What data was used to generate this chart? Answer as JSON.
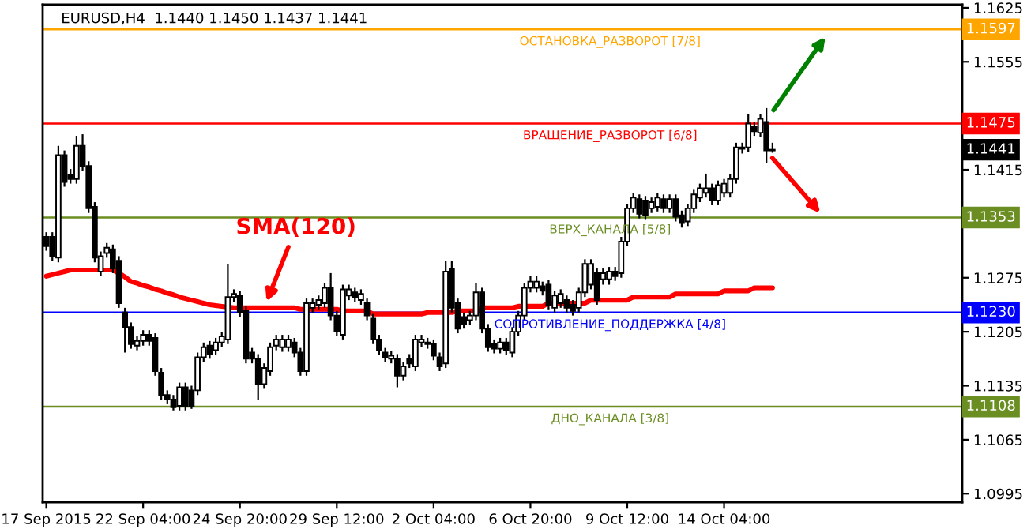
{
  "chart_data": {
    "type": "candlestick",
    "title": "EURUSD,H4  1.1440 1.1450 1.1437 1.1441",
    "categories": [
      "17 Sep 2015",
      null,
      null,
      null,
      null,
      null,
      null,
      null,
      null,
      null,
      null,
      null,
      null,
      null,
      null,
      null,
      "22 Sep 04:00",
      null,
      null,
      null,
      null,
      null,
      null,
      null,
      null,
      null,
      null,
      null,
      null,
      null,
      null,
      null,
      "24 Sep 20:00",
      null,
      null,
      null,
      null,
      null,
      null,
      null,
      null,
      null,
      null,
      null,
      null,
      null,
      null,
      null,
      "29 Sep 12:00",
      null,
      null,
      null,
      null,
      null,
      null,
      null,
      null,
      null,
      null,
      null,
      null,
      null,
      null,
      null,
      "2 Oct 04:00",
      null,
      null,
      null,
      null,
      null,
      null,
      null,
      null,
      null,
      null,
      null,
      null,
      null,
      null,
      null,
      "6 Oct 20:00",
      null,
      null,
      null,
      null,
      null,
      null,
      null,
      null,
      null,
      null,
      null,
      null,
      null,
      null,
      null,
      "9 Oct 12:00",
      null,
      null,
      null,
      null,
      null,
      null,
      null,
      null,
      null,
      null,
      null,
      null,
      null,
      null,
      null,
      "14 Oct 04:00",
      null,
      null,
      null,
      null,
      null,
      null,
      null,
      null
    ],
    "ohlc": [
      [
        1.1328,
        1.1334,
        1.131,
        1.1316
      ],
      [
        1.1328,
        1.1334,
        1.1297,
        1.1303
      ],
      [
        1.1301,
        1.1446,
        1.1295,
        1.1434
      ],
      [
        1.1434,
        1.144,
        1.1393,
        1.1399
      ],
      [
        1.1408,
        1.1416,
        1.1397,
        1.1403
      ],
      [
        1.1403,
        1.1459,
        1.1397,
        1.1446
      ],
      [
        1.1446,
        1.1461,
        1.1414,
        1.142
      ],
      [
        1.142,
        1.1426,
        1.1359,
        1.1365
      ],
      [
        1.1367,
        1.1373,
        1.1295,
        1.1301
      ],
      [
        1.1283,
        1.1309,
        1.1277,
        1.1303
      ],
      [
        1.1307,
        1.132,
        1.1301,
        1.1314
      ],
      [
        1.1312,
        1.1318,
        1.1281,
        1.1287
      ],
      [
        1.1297,
        1.1303,
        1.1236,
        1.1242
      ],
      [
        1.123,
        1.1236,
        1.1178,
        1.1211
      ],
      [
        1.1211,
        1.1217,
        1.1183,
        1.1189
      ],
      [
        1.1187,
        1.1199,
        1.1181,
        1.1193
      ],
      [
        1.1193,
        1.1207,
        1.1187,
        1.1201
      ],
      [
        1.1201,
        1.1207,
        1.1187,
        1.1193
      ],
      [
        1.1197,
        1.1203,
        1.1148,
        1.1154
      ],
      [
        1.1152,
        1.1158,
        1.1117,
        1.1123
      ],
      [
        1.1123,
        1.1129,
        1.1111,
        1.1117
      ],
      [
        1.1117,
        1.1123,
        1.1103,
        1.1107
      ],
      [
        1.1109,
        1.1139,
        1.1103,
        1.1133
      ],
      [
        1.1133,
        1.1139,
        1.1103,
        1.1109
      ],
      [
        1.1129,
        1.1135,
        1.1105,
        1.1109
      ],
      [
        1.1129,
        1.1178,
        1.1123,
        1.1172
      ],
      [
        1.1172,
        1.1191,
        1.1166,
        1.1185
      ],
      [
        1.1187,
        1.1193,
        1.117,
        1.1176
      ],
      [
        1.1181,
        1.1197,
        1.1175,
        1.1191
      ],
      [
        1.1191,
        1.1205,
        1.1185,
        1.1199
      ],
      [
        1.1195,
        1.1293,
        1.1189,
        1.125
      ],
      [
        1.125,
        1.126,
        1.1244,
        1.1254
      ],
      [
        1.1252,
        1.1258,
        1.1224,
        1.123
      ],
      [
        1.1232,
        1.1238,
        1.1164,
        1.117
      ],
      [
        1.1178,
        1.1184,
        1.1164,
        1.117
      ],
      [
        1.117,
        1.1176,
        1.1117,
        1.1137
      ],
      [
        1.1137,
        1.1164,
        1.1131,
        1.1158
      ],
      [
        1.1154,
        1.1191,
        1.1148,
        1.1185
      ],
      [
        1.1187,
        1.1201,
        1.1181,
        1.1195
      ],
      [
        1.1185,
        1.1201,
        1.1179,
        1.1195
      ],
      [
        1.1185,
        1.1201,
        1.1179,
        1.1195
      ],
      [
        1.1191,
        1.1197,
        1.1172,
        1.1178
      ],
      [
        1.1178,
        1.1184,
        1.1148,
        1.1154
      ],
      [
        1.1154,
        1.1248,
        1.1148,
        1.1242
      ],
      [
        1.1236,
        1.1248,
        1.123,
        1.1242
      ],
      [
        1.124,
        1.1252,
        1.1234,
        1.1246
      ],
      [
        1.1242,
        1.1268,
        1.1236,
        1.1262
      ],
      [
        1.1262,
        1.1281,
        1.122,
        1.1226
      ],
      [
        1.1226,
        1.1232,
        1.1199,
        1.1205
      ],
      [
        1.1201,
        1.1266,
        1.1195,
        1.126
      ],
      [
        1.1252,
        1.1266,
        1.1246,
        1.126
      ],
      [
        1.1256,
        1.1262,
        1.1244,
        1.125
      ],
      [
        1.1246,
        1.126,
        1.124,
        1.1254
      ],
      [
        1.1242,
        1.1248,
        1.122,
        1.1226
      ],
      [
        1.1222,
        1.1228,
        1.1189,
        1.1195
      ],
      [
        1.1195,
        1.1201,
        1.1175,
        1.1181
      ],
      [
        1.1178,
        1.1184,
        1.1166,
        1.1172
      ],
      [
        1.117,
        1.118,
        1.1164,
        1.1174
      ],
      [
        1.117,
        1.1176,
        1.1133,
        1.1148
      ],
      [
        1.1148,
        1.1166,
        1.1142,
        1.116
      ],
      [
        1.117,
        1.1176,
        1.1158,
        1.1164
      ],
      [
        1.116,
        1.1201,
        1.1154,
        1.1195
      ],
      [
        1.1191,
        1.1201,
        1.1185,
        1.1195
      ],
      [
        1.1191,
        1.1197,
        1.1183,
        1.1189
      ],
      [
        1.1189,
        1.1195,
        1.1168,
        1.1174
      ],
      [
        1.1172,
        1.1178,
        1.1154,
        1.116
      ],
      [
        1.1164,
        1.1297,
        1.1158,
        1.1283
      ],
      [
        1.1287,
        1.1297,
        1.123,
        1.1236
      ],
      [
        1.1242,
        1.1248,
        1.1203,
        1.1209
      ],
      [
        1.1224,
        1.123,
        1.1209,
        1.1215
      ],
      [
        1.122,
        1.1232,
        1.1214,
        1.1226
      ],
      [
        1.1226,
        1.1268,
        1.122,
        1.1256
      ],
      [
        1.1256,
        1.1262,
        1.1203,
        1.1209
      ],
      [
        1.1209,
        1.1215,
        1.1179,
        1.1185
      ],
      [
        1.1189,
        1.1195,
        1.1177,
        1.1183
      ],
      [
        1.1183,
        1.1197,
        1.1177,
        1.1191
      ],
      [
        1.1191,
        1.1197,
        1.1175,
        1.1181
      ],
      [
        1.1178,
        1.1211,
        1.1172,
        1.1205
      ],
      [
        1.1205,
        1.1232,
        1.1199,
        1.1226
      ],
      [
        1.1226,
        1.1268,
        1.122,
        1.1262
      ],
      [
        1.1262,
        1.1277,
        1.1256,
        1.127
      ],
      [
        1.1262,
        1.1277,
        1.1256,
        1.127
      ],
      [
        1.1264,
        1.127,
        1.1252,
        1.1258
      ],
      [
        1.1266,
        1.1272,
        1.1234,
        1.124
      ],
      [
        1.1236,
        1.1258,
        1.123,
        1.1252
      ],
      [
        1.1242,
        1.126,
        1.1236,
        1.1254
      ],
      [
        1.1246,
        1.1252,
        1.123,
        1.1236
      ],
      [
        1.124,
        1.1246,
        1.1226,
        1.1232
      ],
      [
        1.1236,
        1.1262,
        1.123,
        1.1256
      ],
      [
        1.1256,
        1.1299,
        1.125,
        1.1293
      ],
      [
        1.1266,
        1.1299,
        1.126,
        1.1293
      ],
      [
        1.1281,
        1.1287,
        1.124,
        1.1246
      ],
      [
        1.1273,
        1.1287,
        1.1266,
        1.1281
      ],
      [
        1.1273,
        1.1289,
        1.1266,
        1.1283
      ],
      [
        1.1283,
        1.1289,
        1.1271,
        1.1277
      ],
      [
        1.1281,
        1.1328,
        1.1275,
        1.1322
      ],
      [
        1.1322,
        1.1371,
        1.1316,
        1.1365
      ],
      [
        1.1365,
        1.1385,
        1.1359,
        1.1379
      ],
      [
        1.1377,
        1.1383,
        1.1352,
        1.1358
      ],
      [
        1.1375,
        1.1381,
        1.135,
        1.1356
      ],
      [
        1.1365,
        1.1379,
        1.1359,
        1.1373
      ],
      [
        1.1367,
        1.1385,
        1.1361,
        1.1379
      ],
      [
        1.1377,
        1.1383,
        1.1359,
        1.1365
      ],
      [
        1.1365,
        1.1383,
        1.1359,
        1.1377
      ],
      [
        1.1377,
        1.1383,
        1.1348,
        1.1354
      ],
      [
        1.1356,
        1.1362,
        1.134,
        1.1346
      ],
      [
        1.1348,
        1.1371,
        1.1342,
        1.1365
      ],
      [
        1.1365,
        1.1389,
        1.1359,
        1.1383
      ],
      [
        1.1379,
        1.1397,
        1.1373,
        1.1391
      ],
      [
        1.1385,
        1.141,
        1.1379,
        1.1391
      ],
      [
        1.1391,
        1.1397,
        1.1369,
        1.1375
      ],
      [
        1.1375,
        1.1401,
        1.1369,
        1.1395
      ],
      [
        1.1385,
        1.1403,
        1.1379,
        1.1397
      ],
      [
        1.1385,
        1.1409,
        1.1379,
        1.1403
      ],
      [
        1.1403,
        1.145,
        1.1397,
        1.1444
      ],
      [
        1.1442,
        1.145,
        1.1436,
        1.1444
      ],
      [
        1.1444,
        1.1487,
        1.1438,
        1.1475
      ],
      [
        1.1471,
        1.1477,
        1.1459,
        1.1465
      ],
      [
        1.1463,
        1.1487,
        1.1457,
        1.1481
      ],
      [
        1.1477,
        1.1495,
        1.1424,
        1.144
      ],
      [
        1.144,
        1.145,
        1.1437,
        1.1441
      ]
    ],
    "series": [
      {
        "type": "line",
        "name": "SMA(120)",
        "color": "#ff0000",
        "values": [
          1.1277,
          1.1279,
          1.1281,
          1.1283,
          1.1285,
          1.1285,
          1.1285,
          1.1285,
          1.1285,
          1.1285,
          1.1285,
          1.1285,
          1.1281,
          1.1276,
          1.127,
          1.1268,
          1.1265,
          1.1263,
          1.126,
          1.1258,
          1.1255,
          1.1253,
          1.125,
          1.1248,
          1.1246,
          1.1244,
          1.1242,
          1.124,
          1.1239,
          1.1238,
          1.1237,
          1.1236,
          1.1236,
          1.1236,
          1.1236,
          1.1236,
          1.1236,
          1.1236,
          1.1236,
          1.1236,
          1.1236,
          1.1236,
          1.1234,
          1.1234,
          1.1234,
          1.1234,
          1.1234,
          1.1234,
          1.1234,
          1.1232,
          1.1232,
          1.1232,
          1.1232,
          1.1232,
          1.1228,
          1.1228,
          1.1228,
          1.1228,
          1.1228,
          1.1228,
          1.1228,
          1.1228,
          1.1228,
          1.123,
          1.123,
          1.123,
          1.123,
          1.123,
          1.1232,
          1.1232,
          1.1232,
          1.1232,
          1.1236,
          1.1236,
          1.1236,
          1.1236,
          1.1236,
          1.1236,
          1.1238,
          1.1238,
          1.1238,
          1.1238,
          1.1238,
          1.1242,
          1.1242,
          1.1242,
          1.1242,
          1.1242,
          1.1242,
          1.1242,
          1.1246,
          1.1246,
          1.1246,
          1.1246,
          1.1246,
          1.1246,
          1.1246,
          1.125,
          1.125,
          1.125,
          1.125,
          1.125,
          1.125,
          1.125,
          1.1254,
          1.1254,
          1.1254,
          1.1254,
          1.1254,
          1.1254,
          1.1254,
          1.1254,
          1.1258,
          1.1258,
          1.1258,
          1.1258,
          1.1258,
          1.1262,
          1.1262,
          1.1262,
          1.1262
        ]
      }
    ],
    "ref_lines": [
      {
        "axis": "y",
        "value": 1.1597,
        "label": "ОСТАНОВКА_РАЗВОРОТ [7/8]",
        "color": "#ffa500"
      },
      {
        "axis": "y",
        "value": 1.1475,
        "label": "ВРАЩЕНИЕ_РАЗВОРОТ [6/8]",
        "color": "#ff0000"
      },
      {
        "axis": "y",
        "value": 1.1353,
        "label": "ВЕРХ_КАНАЛА [5/8]",
        "color": "#6b8e23"
      },
      {
        "axis": "y",
        "value": 1.123,
        "label": "СОПРОТИВЛЕНИЕ_ПОДДЕРЖКА [4/8]",
        "color": "#0000ff"
      },
      {
        "axis": "y",
        "value": 1.1108,
        "label": "ДНО_КАНАЛА [3/8]",
        "color": "#6b8e23"
      }
    ],
    "annotations": [
      "1.1597",
      "1.1475",
      "1.1353",
      "1.1230",
      "1.1108",
      "1.1441"
    ],
    "ylim": [
      1.0984,
      1.1629
    ],
    "yticks": [
      1.0995,
      1.1065,
      1.1135,
      1.1205,
      1.1275,
      1.1415,
      1.1555,
      1.1625
    ]
  }
}
